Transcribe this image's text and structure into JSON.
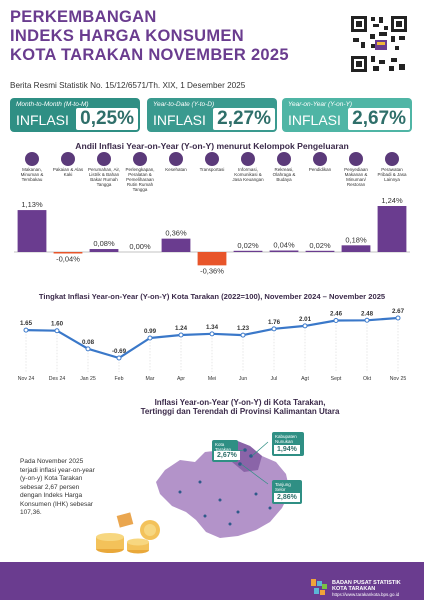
{
  "header": {
    "title_lines": [
      "PERKEMBANGAN",
      "INDEKS HARGA KONSUMEN",
      "KOTA TARAKAN NOVEMBER 2025"
    ],
    "subtitle": "Berita Resmi Statistik No. 15/12/6571/Th. XIX, 1 Desember 2025"
  },
  "cards": [
    {
      "label": "Month-to-Month (M-to-M)",
      "word": "INFLASI",
      "value": "0,25%"
    },
    {
      "label": "Year-to-Date (Y-to-D)",
      "word": "INFLASI",
      "value": "2,27%"
    },
    {
      "label": "Year-on-Year (Y-on-Y)",
      "word": "INFLASI",
      "value": "2,67%"
    }
  ],
  "bar_section": {
    "title": "Andil Inflasi Year-on-Year (Y-on-Y) menurut Kelompok Pengeluaran"
  },
  "line_section": {
    "title": "Tingkat Inflasi Year-on-Year (Y-on-Y) Kota Tarakan (2022=100), November 2024 – November 2025"
  },
  "map_section": {
    "title_line1": "Inflasi Year-on-Year (Y-on-Y) di Kota Tarakan,",
    "title_line2": "Tertinggi dan Terendah di Provinsi Kalimantan Utara",
    "note": [
      "Pada November 2025",
      "terjadi inflasi year-on-year",
      "(y-on-y) Kota Tarakan",
      "sebesar 2,67 persen",
      "dengan Indeks Harga",
      "Konsumen (IHK) sebesar",
      "107,36."
    ],
    "callouts": [
      {
        "name": "Kota Tarakan",
        "value": "2,67%"
      },
      {
        "name": "Kabupaten Nunukan",
        "value": "1,94%"
      },
      {
        "name": "Tanjung Selor",
        "value": "2,86%"
      }
    ]
  },
  "footer": {
    "name_line1": "BADAN PUSAT STATISTIK",
    "name_line2": "KOTA TARAKAN",
    "url": "https://www.tarakankota.bps.go.id"
  },
  "colors": {
    "purple": "#6a3c8f",
    "teal": "#2f8f84",
    "bar_positive": "#6a3c8f",
    "bar_negative": "#e8552a",
    "line": "#3a78c9"
  },
  "chart_data": [
    {
      "type": "bar",
      "categories": [
        "Makanan, Minuman & Tembakau",
        "Pakaian & Alas Kaki",
        "Perumahan, Air, Listrik & Bahan Bakar Rumah Tangga",
        "Perlengkapan, Peralatan & Pemeliharaan Rutin Rumah Tangga",
        "Kesehatan",
        "Transportasi",
        "Informasi, Komunikasi & Jasa Keuangan",
        "Rekreasi, Olahraga & Budaya",
        "Pendidikan",
        "Penyediaan Makanan & Minuman/ Restoran",
        "Perawatan Pribadi & Jasa Lainnya"
      ],
      "values": [
        1.13,
        -0.04,
        0.08,
        0.0,
        0.36,
        -0.36,
        0.02,
        0.04,
        0.02,
        0.18,
        1.24
      ],
      "value_labels": [
        "1,13%",
        "-0,04%",
        "0,08%",
        "0,00%",
        "0,36%",
        "-0,36%",
        "0,02%",
        "0,04%",
        "0,02%",
        "0,18%",
        "1,24%"
      ]
    },
    {
      "type": "line",
      "categories": [
        "Nov 24",
        "Des 24",
        "Jan 25",
        "Feb",
        "Mar",
        "Apr",
        "Mei",
        "Jun",
        "Jul",
        "Agt",
        "Sept",
        "Okt",
        "Nov 25"
      ],
      "values": [
        1.65,
        1.6,
        0.08,
        -0.69,
        0.99,
        1.24,
        1.34,
        1.23,
        1.76,
        2.01,
        2.46,
        2.48,
        2.67
      ],
      "value_labels": [
        "1.65",
        "1.60",
        "0.08",
        "-0.69",
        "0.99",
        "1.24",
        "1.34",
        "1.23",
        "1.76",
        "2.01",
        "2.46",
        "2.48",
        "2.67"
      ]
    }
  ]
}
